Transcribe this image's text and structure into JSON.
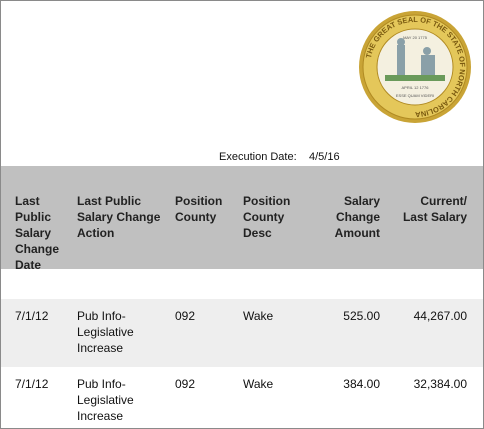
{
  "seal": {
    "ring_text": "THE GREAT SEAL OF THE STATE OF NORTH CAROLINA",
    "top_date": "MAY 20 1775",
    "bottom_date": "APRIL 12 1776",
    "motto": "ESSE QUAM VIDERI"
  },
  "execution": {
    "label": "Execution Date:",
    "value": "4/5/16"
  },
  "table": {
    "headers": [
      "Last Public Salary Change Date",
      "Last Public Salary Change Action",
      "Position County",
      "Position County Desc",
      "Salary Change Amount",
      "Current/ Last Salary"
    ],
    "rows": [
      [
        "7/1/12",
        "Pub Info-Legislative Increase",
        "092",
        "Wake",
        "525.00",
        "44,267.00"
      ],
      [
        "7/1/12",
        "Pub Info-Legislative Increase",
        "092",
        "Wake",
        "384.00",
        "32,384.00"
      ]
    ]
  }
}
